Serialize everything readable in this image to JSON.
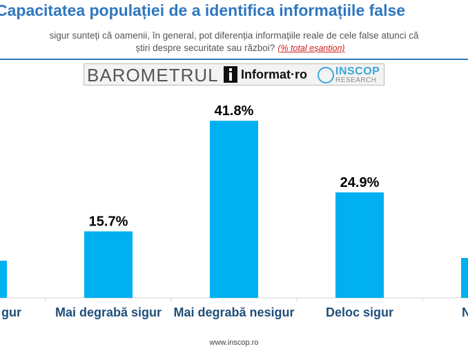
{
  "header": {
    "title": "Capacitatea populației de a identifica informațiile false",
    "question_line1": "sigur sunteți că oamenii, în general, pot diferenția informațiile reale de cele false atunci că",
    "question_line2": "știri despre securitate sau război?",
    "question_note": "(% total eșantion)"
  },
  "logos": {
    "barometrul": "BAROMETRUL",
    "informat": "Informat·ro",
    "inscop_name": "INSCOP",
    "inscop_sub": "RESEARCH"
  },
  "colors": {
    "bar": "#00b0f0",
    "title": "#2e77bf",
    "note": "#d21a1a"
  },
  "chart_data": {
    "type": "bar",
    "categories": [
      "gur",
      "Mai degrabă sigur",
      "Mai degrabă nesigur",
      "Deloc sigur",
      "N"
    ],
    "values": [
      null,
      15.7,
      41.8,
      24.9,
      null
    ],
    "data_labels": [
      "",
      "15.7%",
      "41.8%",
      "24.9%",
      ""
    ],
    "ylim": [
      0,
      50
    ],
    "grid": false,
    "legend": "none"
  },
  "footer": {
    "url": "www.inscop.ro"
  }
}
